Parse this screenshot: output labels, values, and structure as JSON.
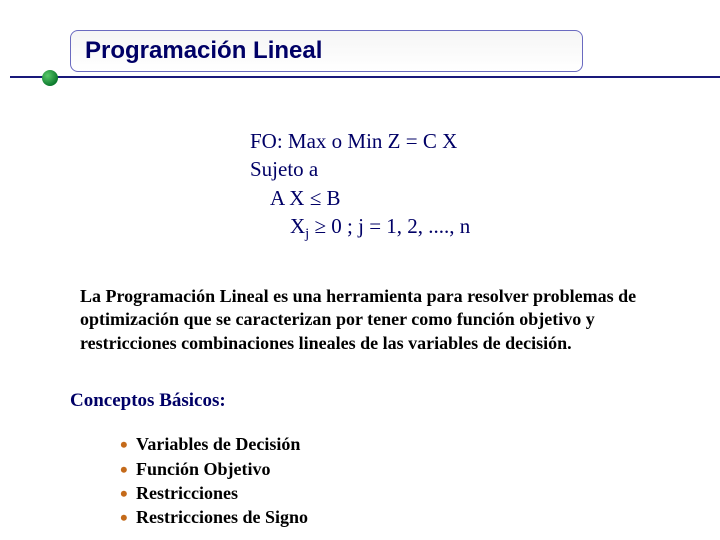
{
  "title": "Programación Lineal",
  "formula": {
    "line1": "FO: Max o Min Z = C X",
    "line2": "Sujeto a",
    "line3_pre": "A X ",
    "line3_op": "≤",
    "line3_post": " B",
    "line4_pre": "X",
    "line4_sub": "j",
    "line4_op": " ≥ ",
    "line4_post": "0 ;  j = 1, 2, ...., n"
  },
  "description": "La Programación Lineal es una herramienta para resolver problemas de optimización que se caracterizan por tener como función objetivo y restricciones combinaciones lineales de las variables de decisión.",
  "section_heading": "Conceptos Básicos:",
  "concepts": {
    "item1": "Variables de Decisión",
    "item2": "Función Objetivo",
    "item3": "Restricciones",
    "item4": "Restricciones de Signo"
  },
  "colors": {
    "title_text": "#000066",
    "underline": "#19197a",
    "bullet_green": "#0d7a2e",
    "bullet_orange": "#c46a1a",
    "body_text": "#000000"
  }
}
